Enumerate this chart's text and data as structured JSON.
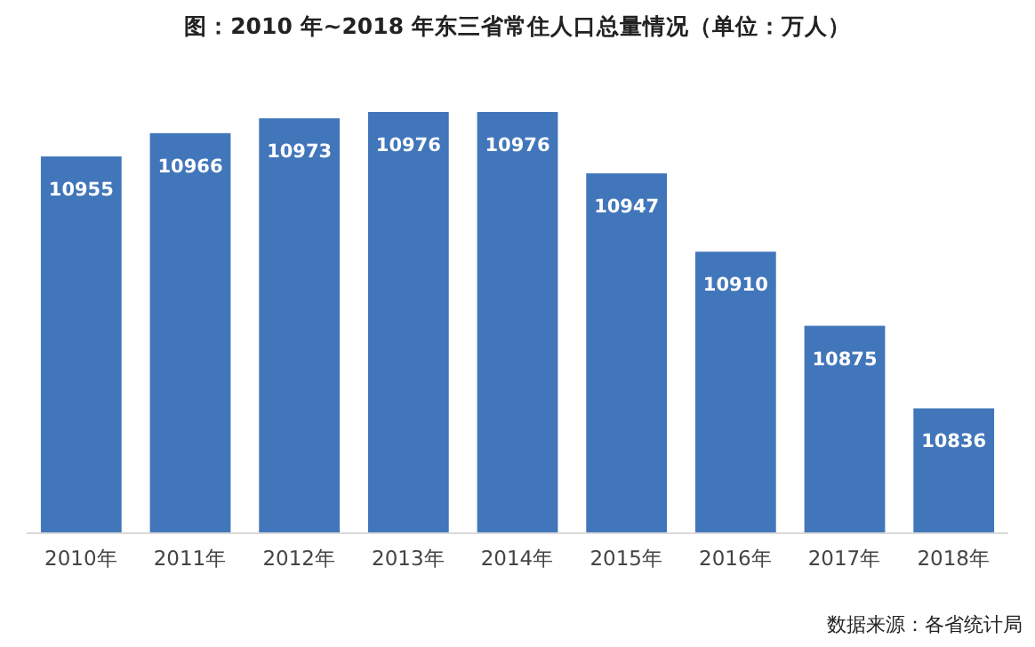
{
  "chart_data": {
    "type": "bar",
    "title": "图：2010 年~2018 年东三省常住人口总量情况（单位：万人）",
    "categories": [
      "2010年",
      "2011年",
      "2012年",
      "2013年",
      "2014年",
      "2015年",
      "2016年",
      "2017年",
      "2018年"
    ],
    "values": [
      10955,
      10966,
      10973,
      10976,
      10976,
      10947,
      10910,
      10875,
      10836
    ],
    "color": "#4276bb",
    "ylim": [
      10777,
      10976
    ],
    "data_labels": true,
    "annotations": [
      "数据来源：各省统计局"
    ]
  }
}
